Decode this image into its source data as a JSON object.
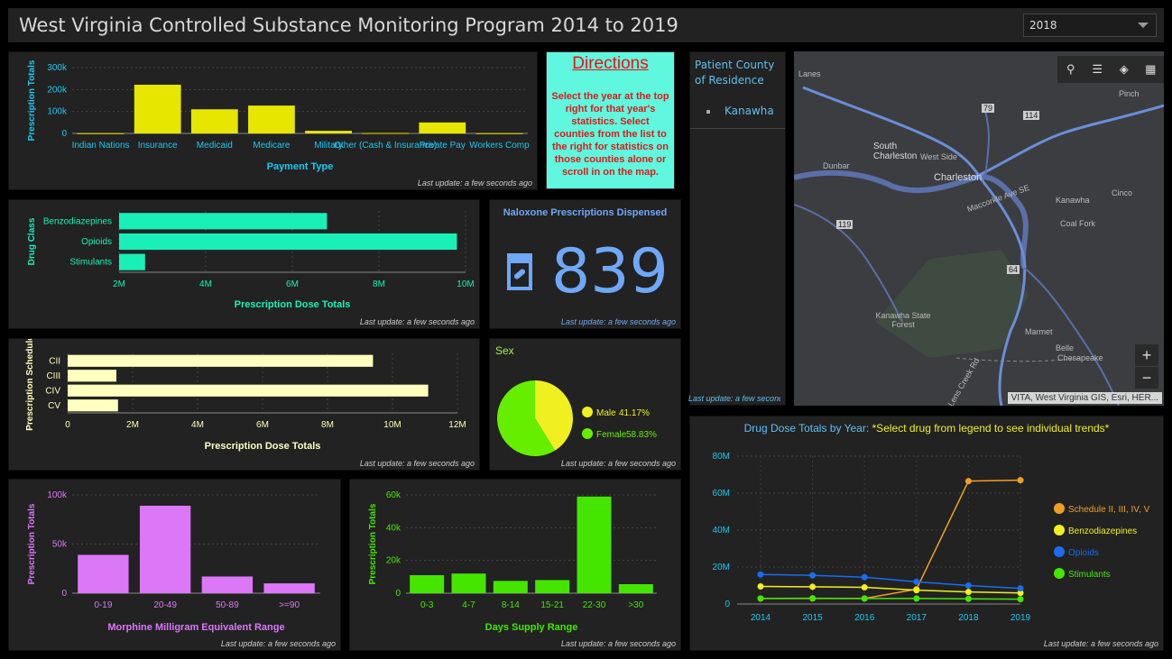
{
  "header": {
    "title": "West Virginia Controlled Substance Monitoring Program 2014 to 2019",
    "year_selected": "2018"
  },
  "last_update": "Last update: a few seconds ago",
  "payment_chart": {
    "chart_data": {
      "type": "bar",
      "categories": [
        "Indian Nations",
        "Insurance",
        "Medicaid",
        "Medicare",
        "Military",
        "Other (Cash & Insurance)",
        "Private Pay",
        "Workers Comp"
      ],
      "values": [
        1000,
        222000,
        110000,
        127000,
        12000,
        2000,
        50000,
        1000
      ],
      "ylim": [
        0,
        300000
      ],
      "yticks": [
        "0",
        "100k",
        "200k",
        "300k"
      ],
      "ylabel": "Prescription Totals",
      "xlabel": "Payment Type",
      "color": "#e6e600"
    }
  },
  "directions": {
    "title": "Directions",
    "body": "Select the year at the top right for that year's statistics. Select counties from the list to the right for statistics on those counties alone or scroll in on the map."
  },
  "county_panel": {
    "title": "Patient County of Residence",
    "items": [
      "Kanawha"
    ]
  },
  "map": {
    "attribution": "VITA, West Virginia GIS, Esri, HER...",
    "labels": [
      "Lanes",
      "Pinch",
      "South Charleston",
      "West Side",
      "Charleston",
      "Dunbar",
      "Kanawha",
      "Cinco",
      "Coal Fork",
      "Kanawha State Forest",
      "Marmet",
      "Belle",
      "Chesapeake",
      "Maccorkle Ave SE",
      "Lens Creek Rd"
    ],
    "route_shields": [
      "79",
      "114",
      "119",
      "64"
    ],
    "zoom_in": "+",
    "zoom_out": "−"
  },
  "drug_class_chart": {
    "chart_data": {
      "type": "bar",
      "orientation": "horizontal",
      "categories": [
        "Benzodiazepines",
        "Opioids",
        "Stimulants"
      ],
      "values": [
        6800000,
        9800000,
        2600000
      ],
      "xlim": [
        2000000,
        10000000
      ],
      "xticks": [
        "2M",
        "4M",
        "6M",
        "8M",
        "10M"
      ],
      "ylabel": "Drug Class",
      "xlabel": "Prescription Dose Totals",
      "color": "#19f0b8"
    }
  },
  "naloxone": {
    "title": "Naloxone Prescriptions Dispensed",
    "value": "839"
  },
  "schedule_chart": {
    "chart_data": {
      "type": "bar",
      "orientation": "horizontal",
      "categories": [
        "CII",
        "CIII",
        "CIV",
        "CV"
      ],
      "values": [
        9400000,
        1500000,
        11100000,
        1550000
      ],
      "xlim": [
        0,
        12000000
      ],
      "xticks": [
        "0",
        "2M",
        "4M",
        "6M",
        "8M",
        "10M",
        "12M"
      ],
      "ylabel": "Prescription Schedule",
      "xlabel": "Prescription Dose Totals",
      "color": "#ffffbf"
    }
  },
  "sex_chart": {
    "title": "Sex",
    "chart_data": {
      "type": "pie",
      "slices": [
        {
          "label": "Male",
          "value": 41.17,
          "display": "41.17%",
          "color": "#f0f020"
        },
        {
          "label": "Female",
          "value": 58.83,
          "display": "58.83%",
          "color": "#66ee00"
        }
      ]
    }
  },
  "mme_chart": {
    "chart_data": {
      "type": "bar",
      "categories": [
        "0-19",
        "20-49",
        "50-89",
        ">=90"
      ],
      "values": [
        39000,
        89000,
        17000,
        10000
      ],
      "ylim": [
        0,
        100000
      ],
      "yticks": [
        "0",
        "50k",
        "100k"
      ],
      "ylabel": "Prescription Totals",
      "xlabel": "Morphine Milligram Equivalent Range",
      "color": "#dc78f8"
    }
  },
  "days_chart": {
    "chart_data": {
      "type": "bar",
      "categories": [
        "0-3",
        "4-7",
        "8-14",
        "15-21",
        "22-30",
        ">30"
      ],
      "values": [
        11000,
        12000,
        7500,
        8000,
        59000,
        5500
      ],
      "ylim": [
        0,
        60000
      ],
      "yticks": [
        "0",
        "20k",
        "40k",
        "60k"
      ],
      "ylabel": "Prescription Totals",
      "xlabel": "Days Supply Range",
      "color": "#44e600"
    }
  },
  "drug_trend_chart": {
    "title_a": "Drug Dose Totals by Year: ",
    "title_b": "*Select drug from legend to see individual trends*",
    "chart_data": {
      "type": "line",
      "x": [
        "2014",
        "2015",
        "2016",
        "2017",
        "2018",
        "2019"
      ],
      "ylim": [
        0,
        80000000
      ],
      "yticks": [
        "0",
        "20M",
        "40M",
        "60M",
        "80M"
      ],
      "series": [
        {
          "name": "Schedule II, III, IV, V",
          "values": [
            3000000,
            3000000,
            3000000,
            8000000,
            66500000,
            67000000
          ],
          "color": "#f0a020"
        },
        {
          "name": "Benzodiazepines",
          "values": [
            9500000,
            9300000,
            9000000,
            7500000,
            6500000,
            6000000
          ],
          "color": "#f0f020"
        },
        {
          "name": "Opioids",
          "values": [
            16000000,
            15500000,
            14500000,
            12000000,
            10000000,
            8500000
          ],
          "color": "#1a6cf0"
        },
        {
          "name": "Stimulants",
          "values": [
            3000000,
            3100000,
            3000000,
            3000000,
            2800000,
            2600000
          ],
          "color": "#44e600"
        }
      ]
    }
  }
}
